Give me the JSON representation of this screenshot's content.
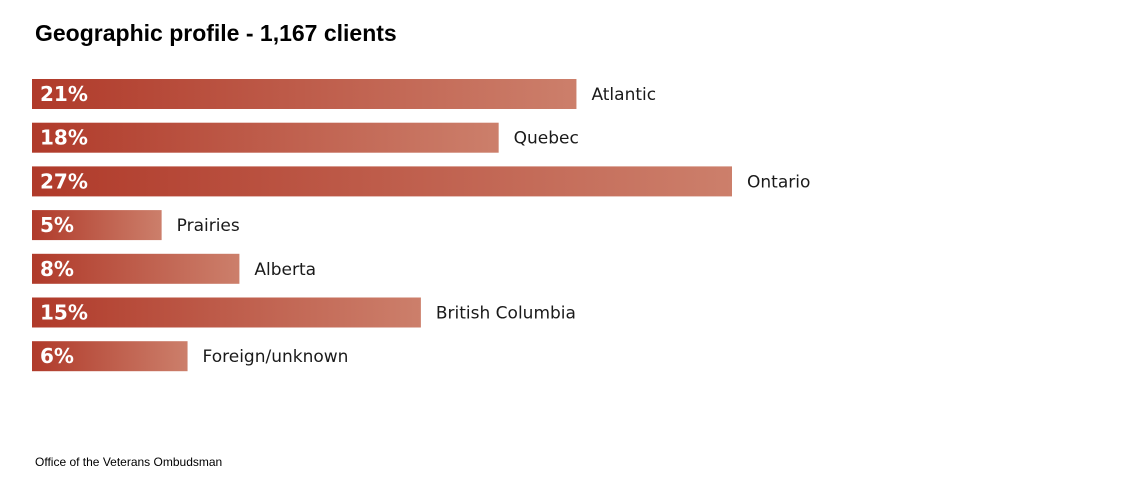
{
  "chart_data": {
    "type": "bar",
    "orientation": "horizontal",
    "title": "Geographic profile - 1,167 clients",
    "categories": [
      "Atlantic",
      "Quebec",
      "Ontario",
      "Prairies",
      "Alberta",
      "British Columbia",
      "Foreign/unknown"
    ],
    "values": [
      21,
      18,
      27,
      5,
      8,
      15,
      6
    ],
    "value_labels": [
      "21%",
      "18%",
      "27%",
      "5%",
      "8%",
      "15%",
      "6%"
    ],
    "unit": "%",
    "xlim": [
      0,
      27
    ],
    "grid": false,
    "legend": "none",
    "colors": {
      "bar_start": "#b03a2a",
      "bar_end": "#cc7f6b"
    }
  },
  "footer": {
    "source": "Office of the Veterans Ombudsman"
  }
}
